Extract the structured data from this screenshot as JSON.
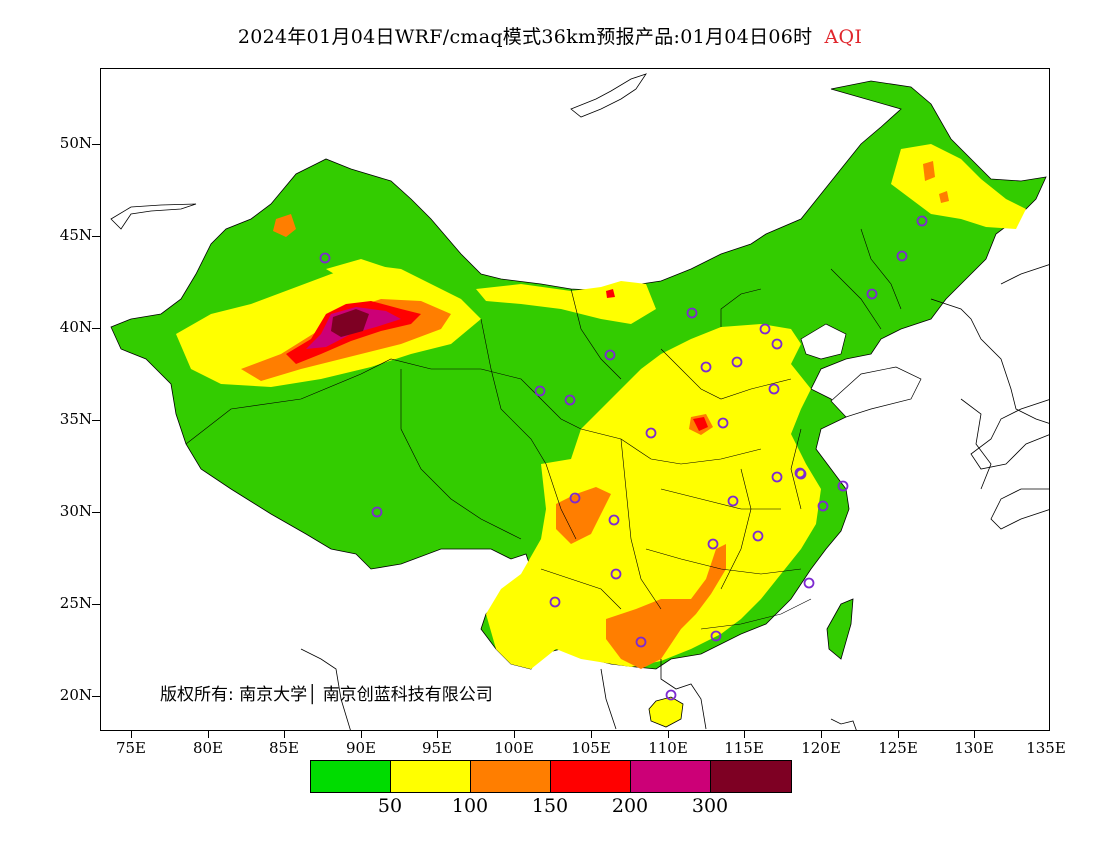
{
  "title": {
    "main": "2024年01月04日WRF/cmaq模式36km预报产品:01月04日06时",
    "product": "AQI"
  },
  "axes": {
    "lat_labels": [
      "50N",
      "45N",
      "40N",
      "35N",
      "30N",
      "25N",
      "20N"
    ],
    "lon_labels": [
      "75E",
      "80E",
      "85E",
      "90E",
      "95E",
      "100E",
      "105E",
      "110E",
      "115E",
      "120E",
      "125E",
      "130E",
      "135E"
    ]
  },
  "copyright": "版权所有: 南京大学│ 南京创蓝科技有限公司",
  "legend": {
    "colors": [
      "#00dc00",
      "#ffff00",
      "#ff7e00",
      "#ff0000",
      "#cc0077",
      "#7e0023"
    ],
    "labels": [
      "50",
      "100",
      "150",
      "200",
      "300"
    ]
  },
  "colors": {
    "good": "#33cc00",
    "moderate": "#ffff00",
    "usg": "#ff7e00",
    "unhealthy": "#ff0000",
    "very_unhealthy": "#cc0077",
    "hazardous": "#7e0023",
    "station_marker": "#7d2ad0",
    "title_product": "#e0262c"
  }
}
